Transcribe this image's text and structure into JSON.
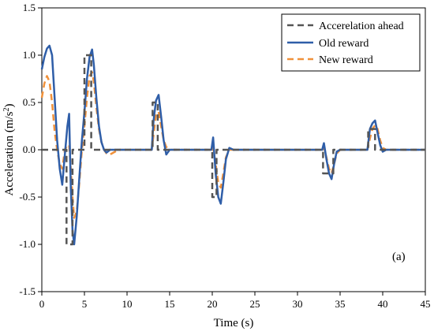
{
  "chart_data": {
    "type": "line",
    "xlabel": "Time (s)",
    "ylabel_main": "Acceleration (m/s",
    "ylabel_sup": "2",
    "ylabel_end": ")",
    "xlim": [
      0,
      45
    ],
    "ylim": [
      -1.5,
      1.5
    ],
    "x_ticks": [
      0,
      5,
      10,
      15,
      20,
      25,
      30,
      35,
      40,
      45
    ],
    "x_tick_labels": [
      "0",
      "5",
      "10",
      "15",
      "20",
      "25",
      "30",
      "35",
      "40",
      "45"
    ],
    "y_ticks": [
      -1.5,
      -1.0,
      -0.5,
      0.0,
      0.5,
      1.0,
      1.5
    ],
    "y_tick_labels": [
      "-1.5",
      "-1.0",
      "-0.5",
      "0.0",
      "0.5",
      "1.0",
      "1.5"
    ],
    "annotation": "(a)",
    "legend_position": "top-right",
    "grid": false,
    "series": [
      {
        "name": "Accerelation ahead",
        "color": "#555555",
        "style": "dashed",
        "x": [
          0,
          2.9,
          2.9,
          3.6,
          3.6,
          5.0,
          5.0,
          5.8,
          5.8,
          13.0,
          13.0,
          13.6,
          13.6,
          20.0,
          20.0,
          20.5,
          20.5,
          33.0,
          33.0,
          34.2,
          34.2,
          38.3,
          38.3,
          39.1,
          39.1,
          45
        ],
        "y": [
          0,
          0,
          -1.0,
          -1.0,
          0,
          0,
          1.0,
          1.0,
          0,
          0,
          0.5,
          0.5,
          0,
          0,
          -0.5,
          -0.5,
          0,
          0,
          -0.25,
          -0.25,
          0,
          0,
          0.22,
          0.22,
          0,
          0
        ]
      },
      {
        "name": "Old reward",
        "color": "#2f5ea8",
        "style": "solid",
        "x": [
          0,
          0.3,
          0.6,
          0.9,
          1.2,
          1.5,
          1.8,
          2.1,
          2.4,
          2.7,
          3.0,
          3.2,
          3.4,
          3.6,
          3.8,
          4.1,
          4.4,
          4.7,
          5.0,
          5.3,
          5.6,
          5.9,
          6.1,
          6.4,
          6.7,
          7.0,
          7.3,
          7.6,
          8.0,
          9.0,
          12.9,
          13.1,
          13.4,
          13.7,
          14.0,
          14.3,
          14.6,
          15.0,
          15.5,
          16,
          19.9,
          20.1,
          20.4,
          20.7,
          21.0,
          21.3,
          21.6,
          22.0,
          22.5,
          23,
          32.9,
          33.1,
          33.4,
          33.7,
          34.0,
          34.3,
          34.6,
          35.0,
          35.5,
          36,
          38.2,
          38.5,
          38.8,
          39.1,
          39.4,
          39.7,
          40.0,
          40.4,
          41,
          45
        ],
        "y": [
          0.85,
          0.98,
          1.07,
          1.1,
          1.0,
          0.55,
          0.1,
          -0.2,
          -0.37,
          -0.05,
          0.25,
          0.38,
          -0.4,
          -0.85,
          -1.0,
          -0.7,
          -0.3,
          0.1,
          0.4,
          0.75,
          0.98,
          1.06,
          0.9,
          0.55,
          0.25,
          0.08,
          0.0,
          -0.03,
          0,
          0,
          0,
          0.3,
          0.52,
          0.58,
          0.35,
          0.1,
          -0.05,
          0,
          0,
          0,
          0,
          0.13,
          -0.25,
          -0.5,
          -0.57,
          -0.35,
          -0.1,
          0.02,
          0,
          0,
          0,
          0.07,
          -0.1,
          -0.25,
          -0.31,
          -0.15,
          -0.02,
          0,
          0,
          0,
          0,
          0.22,
          0.28,
          0.31,
          0.18,
          0.05,
          -0.02,
          0,
          0,
          0
        ]
      },
      {
        "name": "New reward",
        "color": "#f0913a",
        "style": "dashed",
        "x": [
          0,
          0.3,
          0.6,
          0.9,
          1.2,
          1.5,
          1.8,
          2.1,
          2.4,
          2.7,
          3.0,
          3.2,
          3.4,
          3.6,
          3.8,
          4.1,
          4.4,
          4.7,
          5.0,
          5.3,
          5.6,
          5.9,
          6.1,
          6.4,
          6.7,
          7.0,
          7.3,
          7.6,
          8.0,
          9.0,
          12.9,
          13.1,
          13.4,
          13.7,
          14.0,
          14.3,
          14.6,
          15.0,
          15.5,
          16,
          19.9,
          20.1,
          20.4,
          20.7,
          21.0,
          21.3,
          21.6,
          22.0,
          22.5,
          23,
          32.9,
          33.1,
          33.4,
          33.7,
          34.0,
          34.3,
          34.6,
          35.0,
          35.5,
          36,
          38.2,
          38.5,
          38.8,
          39.1,
          39.4,
          39.7,
          40.0,
          40.4,
          41,
          45
        ],
        "y": [
          0.55,
          0.7,
          0.78,
          0.72,
          0.5,
          0.2,
          0.0,
          -0.15,
          -0.2,
          0.0,
          0.05,
          0.05,
          -0.2,
          -0.5,
          -0.72,
          -0.65,
          -0.35,
          0.0,
          0.25,
          0.55,
          0.78,
          0.82,
          0.72,
          0.45,
          0.22,
          0.08,
          0.0,
          -0.04,
          -0.05,
          0,
          0,
          0.15,
          0.38,
          0.4,
          0.25,
          0.1,
          0.03,
          0,
          0,
          0,
          0,
          0.02,
          -0.15,
          -0.35,
          -0.4,
          -0.25,
          -0.08,
          0,
          0,
          0,
          0,
          0.02,
          -0.08,
          -0.2,
          -0.25,
          -0.15,
          -0.04,
          0,
          0,
          0,
          0,
          0.12,
          0.22,
          0.26,
          0.22,
          0.1,
          0.02,
          0,
          0,
          0
        ]
      }
    ]
  }
}
